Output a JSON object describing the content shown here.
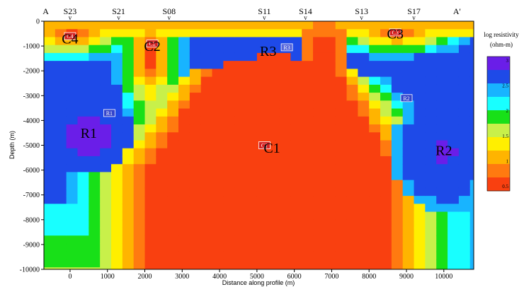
{
  "chart_data": {
    "type": "heatmap",
    "title": "",
    "xlabel": "Distance along profile (m)",
    "ylabel": "Depth (m)",
    "xlim": [
      -700,
      10800
    ],
    "ylim": [
      -10000,
      0
    ],
    "x_ticks": [
      0,
      1000,
      2000,
      3000,
      4000,
      5000,
      6000,
      7000,
      8000,
      9000,
      10000
    ],
    "y_ticks": [
      0,
      -1000,
      -2000,
      -3000,
      -4000,
      -5000,
      -6000,
      -7000,
      -8000,
      -9000,
      -10000
    ],
    "profile_ends": [
      {
        "label": "A",
        "x": -650
      },
      {
        "label": "A'",
        "x": 10350
      }
    ],
    "stations": [
      {
        "name": "S23",
        "x": 0
      },
      {
        "name": "S21",
        "x": 1300
      },
      {
        "name": "S08",
        "x": 2650
      },
      {
        "name": "S11",
        "x": 5200
      },
      {
        "name": "S14",
        "x": 6300
      },
      {
        "name": "S13",
        "x": 7800
      },
      {
        "name": "S17",
        "x": 9200
      }
    ],
    "station_marker": "v",
    "regions": [
      {
        "label": "C4",
        "x": 0,
        "y": -700
      },
      {
        "label": "C2",
        "x": 2200,
        "y": -1000
      },
      {
        "label": "R3",
        "x": 5300,
        "y": -1200
      },
      {
        "label": "C3",
        "x": 8700,
        "y": -500
      },
      {
        "label": "R1",
        "x": 500,
        "y": -4500
      },
      {
        "label": "C1",
        "x": 5400,
        "y": -5100
      },
      {
        "label": "R2",
        "x": 10000,
        "y": -5200
      }
    ],
    "boxed_labels": [
      {
        "label": "C4",
        "x": 0,
        "y": -600,
        "color": "#d42020"
      },
      {
        "label": "C2",
        "x": 2200,
        "y": -900,
        "color": "#d42020"
      },
      {
        "label": "R3",
        "x": 5800,
        "y": -1050,
        "color": "#5566dd"
      },
      {
        "label": "C3",
        "x": 8700,
        "y": -450,
        "color": "#d42020"
      },
      {
        "label": "R1",
        "x": 1050,
        "y": -3700,
        "color": "#3344cc"
      },
      {
        "label": "R2",
        "x": 9000,
        "y": -3100,
        "color": "#3344cc"
      },
      {
        "label": "C1",
        "x": 5200,
        "y": -5000,
        "color": "#d42020"
      }
    ],
    "colorbar": {
      "title_line1": "log resistivity",
      "title_line2": "(ohm-m)",
      "min": 0,
      "max": 3,
      "colors": [
        "#f94010",
        "#ff7a10",
        "#ffb400",
        "#ffef00",
        "#c8f04a",
        "#18e018",
        "#18ffff",
        "#18b4ff",
        "#1e4ae8",
        "#6a1ee8"
      ],
      "ticks": [
        "3",
        "2.5",
        "2",
        "1.5",
        "1",
        "0.5"
      ]
    },
    "grid": false,
    "legend_position": "right"
  }
}
